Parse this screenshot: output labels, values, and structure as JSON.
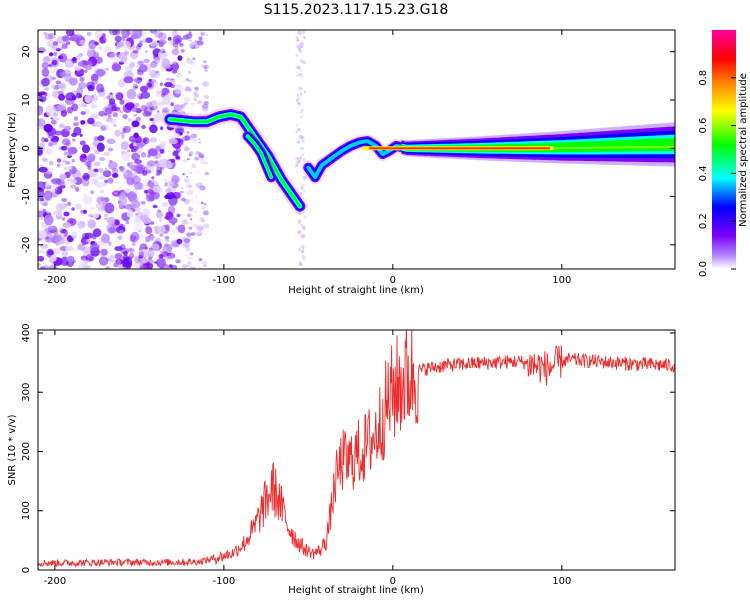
{
  "title": "S115.2023.117.15.23.G18",
  "chart_data": [
    {
      "type": "heatmap",
      "xlabel": "Height of straight line (km)",
      "ylabel": "Frequency (Hz)",
      "xlim": [
        -210,
        167
      ],
      "ylim": [
        -25,
        24.5
      ],
      "xticks": [
        -200,
        -100,
        0,
        100
      ],
      "yticks": [
        -20,
        -10,
        0,
        10,
        20
      ],
      "colorbar": {
        "label": "Normalized spectral amplitude",
        "range": [
          0,
          1
        ],
        "ticks": [
          0.0,
          0.2,
          0.4,
          0.6,
          0.8
        ],
        "tick_labels": [
          "0.0",
          "0.2",
          "0.4",
          "0.6",
          "0.8"
        ],
        "colormap": [
          "#ffffff",
          "#7a00ff",
          "#0000ff",
          "#00ffff",
          "#00ff00",
          "#ffff00",
          "#ff8000",
          "#ff0000",
          "#ff00a0"
        ]
      },
      "ridge": {
        "name": "",
        "x": [
          -132,
          -118,
          -110,
          -103,
          -96,
          -90,
          -86,
          -82,
          -78,
          -74,
          -70,
          -66,
          -62,
          -58,
          -55
        ],
        "y": [
          6,
          5.5,
          5.5,
          6.5,
          7,
          6.5,
          4.5,
          2.5,
          0.5,
          -1.5,
          -4,
          -6.5,
          -8.5,
          -10.5,
          -12
        ]
      },
      "ridge_branch": {
        "x": [
          -86,
          -82,
          -78,
          -75,
          -72
        ],
        "y": [
          2.5,
          1,
          -1,
          -3.5,
          -6
        ]
      },
      "trend": {
        "x": [
          -50,
          -46,
          -42,
          -38,
          -34,
          -30,
          -25,
          -20,
          -15,
          -10,
          -6,
          -2,
          2,
          8,
          20,
          50,
          100,
          167
        ],
        "y": [
          -4,
          -6,
          -3.5,
          -2.5,
          -1.5,
          -0.5,
          0.5,
          1.2,
          1.5,
          0.5,
          -1.2,
          -0.5,
          0.5,
          0,
          0,
          0,
          0.2,
          0.8
        ]
      },
      "strong_band": {
        "x_from": -18,
        "x_to": 95,
        "y": 0
      }
    },
    {
      "type": "line",
      "xlabel": "Height of straight line (km)",
      "ylabel": "SNR (10 * v/v)",
      "xlim": [
        -210,
        167
      ],
      "ylim": [
        0,
        405
      ],
      "xticks": [
        -200,
        -100,
        0,
        100
      ],
      "yticks": [
        0,
        100,
        200,
        300,
        400
      ],
      "color": "#ee2c2c",
      "series": [
        {
          "name": "",
          "x": [
            -210,
            -190,
            -170,
            -150,
            -130,
            -115,
            -105,
            -95,
            -88,
            -82,
            -76,
            -71,
            -67,
            -62,
            -57,
            -52,
            -47,
            -42,
            -38,
            -34,
            -30,
            -26,
            -22,
            -18,
            -14,
            -10,
            -6,
            -2,
            3,
            8,
            14,
            20,
            30,
            45,
            60,
            75,
            85,
            92,
            98,
            105,
            120,
            140,
            167
          ],
          "y": [
            12,
            12,
            13,
            13,
            13,
            14,
            20,
            28,
            45,
            70,
            110,
            140,
            115,
            75,
            50,
            35,
            28,
            35,
            70,
            150,
            185,
            180,
            195,
            200,
            215,
            230,
            260,
            290,
            310,
            325,
            335,
            340,
            345,
            348,
            350,
            352,
            345,
            340,
            350,
            355,
            352,
            348,
            345
          ]
        }
      ]
    }
  ]
}
